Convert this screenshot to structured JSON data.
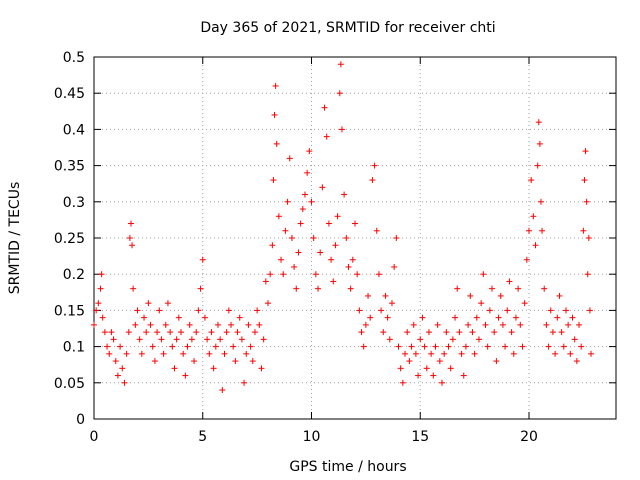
{
  "chart_data": {
    "type": "scatter",
    "title": "Day 365 of 2021, SRMTID for receiver chti",
    "xlabel": "GPS time / hours",
    "ylabel": "SRMTID / TECUs",
    "xlim": [
      0,
      24
    ],
    "ylim": [
      0,
      0.5
    ],
    "xticks": [
      0,
      5,
      10,
      15,
      20
    ],
    "yticks": [
      0,
      0.05,
      0.1,
      0.15,
      0.2,
      0.25,
      0.3,
      0.35,
      0.4,
      0.45,
      0.5
    ],
    "grid": true,
    "marker": "plus",
    "color": "#ff0000",
    "points": [
      [
        0.0,
        0.13
      ],
      [
        0.1,
        0.15
      ],
      [
        0.2,
        0.16
      ],
      [
        0.3,
        0.18
      ],
      [
        0.35,
        0.2
      ],
      [
        0.4,
        0.14
      ],
      [
        0.5,
        0.12
      ],
      [
        0.6,
        0.1
      ],
      [
        0.7,
        0.09
      ],
      [
        0.8,
        0.12
      ],
      [
        0.9,
        0.11
      ],
      [
        1.0,
        0.08
      ],
      [
        1.1,
        0.06
      ],
      [
        1.2,
        0.1
      ],
      [
        1.3,
        0.07
      ],
      [
        1.4,
        0.05
      ],
      [
        1.5,
        0.09
      ],
      [
        1.6,
        0.12
      ],
      [
        1.65,
        0.25
      ],
      [
        1.7,
        0.27
      ],
      [
        1.75,
        0.24
      ],
      [
        1.8,
        0.18
      ],
      [
        1.9,
        0.13
      ],
      [
        2.0,
        0.15
      ],
      [
        2.1,
        0.11
      ],
      [
        2.2,
        0.09
      ],
      [
        2.3,
        0.14
      ],
      [
        2.4,
        0.12
      ],
      [
        2.5,
        0.16
      ],
      [
        2.6,
        0.13
      ],
      [
        2.7,
        0.1
      ],
      [
        2.8,
        0.08
      ],
      [
        2.9,
        0.12
      ],
      [
        3.0,
        0.15
      ],
      [
        3.1,
        0.11
      ],
      [
        3.2,
        0.09
      ],
      [
        3.3,
        0.13
      ],
      [
        3.4,
        0.16
      ],
      [
        3.5,
        0.12
      ],
      [
        3.6,
        0.1
      ],
      [
        3.7,
        0.07
      ],
      [
        3.8,
        0.11
      ],
      [
        3.9,
        0.14
      ],
      [
        4.0,
        0.12
      ],
      [
        4.1,
        0.09
      ],
      [
        4.2,
        0.06
      ],
      [
        4.3,
        0.1
      ],
      [
        4.4,
        0.13
      ],
      [
        4.5,
        0.11
      ],
      [
        4.6,
        0.08
      ],
      [
        4.7,
        0.12
      ],
      [
        4.8,
        0.15
      ],
      [
        4.9,
        0.18
      ],
      [
        5.0,
        0.22
      ],
      [
        5.1,
        0.14
      ],
      [
        5.2,
        0.11
      ],
      [
        5.3,
        0.09
      ],
      [
        5.4,
        0.12
      ],
      [
        5.5,
        0.07
      ],
      [
        5.6,
        0.1
      ],
      [
        5.7,
        0.13
      ],
      [
        5.8,
        0.11
      ],
      [
        5.9,
        0.04
      ],
      [
        6.0,
        0.09
      ],
      [
        6.1,
        0.12
      ],
      [
        6.2,
        0.15
      ],
      [
        6.3,
        0.13
      ],
      [
        6.4,
        0.1
      ],
      [
        6.5,
        0.08
      ],
      [
        6.6,
        0.12
      ],
      [
        6.7,
        0.14
      ],
      [
        6.8,
        0.11
      ],
      [
        6.9,
        0.05
      ],
      [
        7.0,
        0.09
      ],
      [
        7.1,
        0.13
      ],
      [
        7.2,
        0.1
      ],
      [
        7.3,
        0.08
      ],
      [
        7.4,
        0.12
      ],
      [
        7.5,
        0.15
      ],
      [
        7.6,
        0.13
      ],
      [
        7.7,
        0.07
      ],
      [
        7.8,
        0.11
      ],
      [
        7.9,
        0.19
      ],
      [
        8.0,
        0.16
      ],
      [
        8.1,
        0.2
      ],
      [
        8.2,
        0.24
      ],
      [
        8.25,
        0.33
      ],
      [
        8.3,
        0.42
      ],
      [
        8.35,
        0.46
      ],
      [
        8.4,
        0.38
      ],
      [
        8.5,
        0.28
      ],
      [
        8.6,
        0.22
      ],
      [
        8.7,
        0.2
      ],
      [
        8.8,
        0.26
      ],
      [
        8.9,
        0.3
      ],
      [
        9.0,
        0.36
      ],
      [
        9.1,
        0.25
      ],
      [
        9.2,
        0.21
      ],
      [
        9.3,
        0.18
      ],
      [
        9.4,
        0.23
      ],
      [
        9.5,
        0.27
      ],
      [
        9.6,
        0.29
      ],
      [
        9.7,
        0.31
      ],
      [
        9.8,
        0.34
      ],
      [
        9.9,
        0.37
      ],
      [
        10.0,
        0.3
      ],
      [
        10.1,
        0.25
      ],
      [
        10.2,
        0.2
      ],
      [
        10.3,
        0.18
      ],
      [
        10.4,
        0.23
      ],
      [
        10.5,
        0.32
      ],
      [
        10.6,
        0.43
      ],
      [
        10.7,
        0.39
      ],
      [
        10.8,
        0.27
      ],
      [
        10.9,
        0.22
      ],
      [
        11.0,
        0.19
      ],
      [
        11.1,
        0.24
      ],
      [
        11.2,
        0.28
      ],
      [
        11.3,
        0.45
      ],
      [
        11.35,
        0.49
      ],
      [
        11.4,
        0.4
      ],
      [
        11.5,
        0.31
      ],
      [
        11.6,
        0.25
      ],
      [
        11.7,
        0.21
      ],
      [
        11.8,
        0.18
      ],
      [
        11.9,
        0.22
      ],
      [
        12.0,
        0.27
      ],
      [
        12.1,
        0.2
      ],
      [
        12.2,
        0.15
      ],
      [
        12.3,
        0.12
      ],
      [
        12.4,
        0.1
      ],
      [
        12.5,
        0.13
      ],
      [
        12.6,
        0.17
      ],
      [
        12.7,
        0.14
      ],
      [
        12.8,
        0.33
      ],
      [
        12.9,
        0.35
      ],
      [
        13.0,
        0.26
      ],
      [
        13.1,
        0.2
      ],
      [
        13.2,
        0.15
      ],
      [
        13.3,
        0.12
      ],
      [
        13.4,
        0.17
      ],
      [
        13.5,
        0.14
      ],
      [
        13.6,
        0.11
      ],
      [
        13.7,
        0.16
      ],
      [
        13.8,
        0.21
      ],
      [
        13.9,
        0.25
      ],
      [
        14.0,
        0.1
      ],
      [
        14.1,
        0.07
      ],
      [
        14.2,
        0.05
      ],
      [
        14.3,
        0.09
      ],
      [
        14.4,
        0.12
      ],
      [
        14.5,
        0.08
      ],
      [
        14.6,
        0.1
      ],
      [
        14.7,
        0.13
      ],
      [
        14.8,
        0.09
      ],
      [
        14.9,
        0.06
      ],
      [
        15.0,
        0.11
      ],
      [
        15.1,
        0.14
      ],
      [
        15.2,
        0.1
      ],
      [
        15.3,
        0.07
      ],
      [
        15.4,
        0.12
      ],
      [
        15.5,
        0.09
      ],
      [
        15.6,
        0.06
      ],
      [
        15.7,
        0.1
      ],
      [
        15.8,
        0.13
      ],
      [
        15.9,
        0.08
      ],
      [
        16.0,
        0.05
      ],
      [
        16.1,
        0.09
      ],
      [
        16.2,
        0.12
      ],
      [
        16.3,
        0.1
      ],
      [
        16.4,
        0.07
      ],
      [
        16.5,
        0.11
      ],
      [
        16.6,
        0.14
      ],
      [
        16.7,
        0.18
      ],
      [
        16.8,
        0.12
      ],
      [
        16.9,
        0.09
      ],
      [
        17.0,
        0.06
      ],
      [
        17.1,
        0.1
      ],
      [
        17.2,
        0.13
      ],
      [
        17.3,
        0.17
      ],
      [
        17.4,
        0.12
      ],
      [
        17.5,
        0.09
      ],
      [
        17.6,
        0.14
      ],
      [
        17.7,
        0.11
      ],
      [
        17.8,
        0.16
      ],
      [
        17.9,
        0.2
      ],
      [
        18.0,
        0.13
      ],
      [
        18.1,
        0.1
      ],
      [
        18.2,
        0.15
      ],
      [
        18.3,
        0.18
      ],
      [
        18.4,
        0.12
      ],
      [
        18.5,
        0.08
      ],
      [
        18.6,
        0.14
      ],
      [
        18.7,
        0.17
      ],
      [
        18.8,
        0.13
      ],
      [
        18.9,
        0.1
      ],
      [
        19.0,
        0.15
      ],
      [
        19.1,
        0.19
      ],
      [
        19.2,
        0.12
      ],
      [
        19.3,
        0.09
      ],
      [
        19.4,
        0.14
      ],
      [
        19.5,
        0.18
      ],
      [
        19.6,
        0.13
      ],
      [
        19.7,
        0.1
      ],
      [
        19.8,
        0.16
      ],
      [
        19.9,
        0.22
      ],
      [
        20.0,
        0.26
      ],
      [
        20.1,
        0.33
      ],
      [
        20.2,
        0.28
      ],
      [
        20.3,
        0.24
      ],
      [
        20.4,
        0.35
      ],
      [
        20.45,
        0.41
      ],
      [
        20.5,
        0.38
      ],
      [
        20.55,
        0.3
      ],
      [
        20.6,
        0.26
      ],
      [
        20.7,
        0.18
      ],
      [
        20.8,
        0.13
      ],
      [
        20.9,
        0.1
      ],
      [
        21.0,
        0.15
      ],
      [
        21.1,
        0.12
      ],
      [
        21.2,
        0.09
      ],
      [
        21.3,
        0.14
      ],
      [
        21.4,
        0.17
      ],
      [
        21.5,
        0.12
      ],
      [
        21.6,
        0.1
      ],
      [
        21.7,
        0.15
      ],
      [
        21.8,
        0.13
      ],
      [
        21.9,
        0.09
      ],
      [
        22.0,
        0.14
      ],
      [
        22.1,
        0.11
      ],
      [
        22.2,
        0.08
      ],
      [
        22.3,
        0.13
      ],
      [
        22.4,
        0.1
      ],
      [
        22.5,
        0.26
      ],
      [
        22.55,
        0.33
      ],
      [
        22.6,
        0.37
      ],
      [
        22.65,
        0.3
      ],
      [
        22.7,
        0.2
      ],
      [
        22.75,
        0.25
      ],
      [
        22.8,
        0.15
      ],
      [
        22.85,
        0.09
      ]
    ]
  }
}
